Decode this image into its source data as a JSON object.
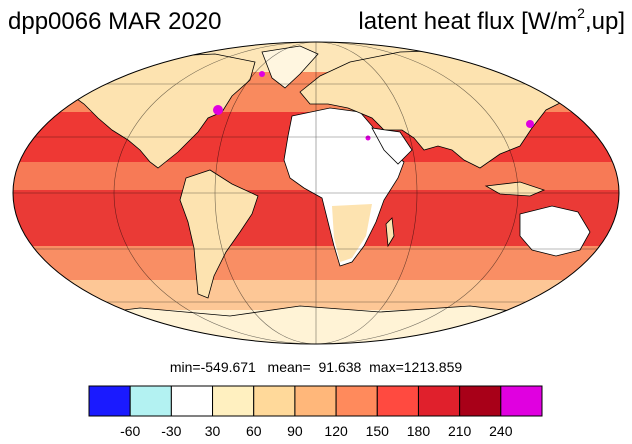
{
  "title_left": "dpp0066 MAR 2020",
  "title_right": {
    "prefix": "latent heat flux [W/m",
    "exp": "2",
    "suffix": ",up]"
  },
  "stats": {
    "min_label": "min=",
    "min": "-549.671",
    "mean_label": "mean=",
    "mean": "91.638",
    "max_label": "max=",
    "max": "1213.859"
  },
  "colorbar": {
    "colors": [
      "#1a1aff",
      "#b3f2f2",
      "#ffffff",
      "#fff0c0",
      "#ffd99a",
      "#ffb77a",
      "#ff8a5c",
      "#ff4a40",
      "#e0202c",
      "#a80018",
      "#e000e0"
    ],
    "tick_labels": [
      "-60",
      "-30",
      "30",
      "60",
      "90",
      "120",
      "150",
      "180",
      "210",
      "240"
    ]
  },
  "map": {
    "projection": "Mollweide",
    "ocean_colors": {
      "tropics": "#f23a38",
      "subtropics": "#fa8a62",
      "midlat_south": "#e8443c",
      "polar": "#fde6b8"
    },
    "land_color": "#fff3d6",
    "desert_color": "#ffffff",
    "coast_color": "#000000"
  }
}
